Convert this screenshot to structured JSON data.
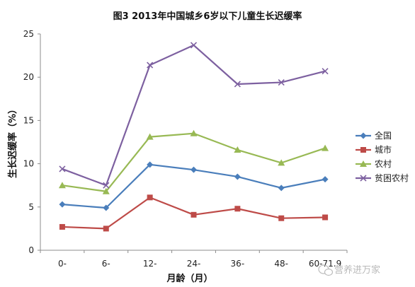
{
  "chart_data": {
    "type": "line",
    "title": "图3    2013年中国城乡6岁以下儿童生长迟缓率",
    "xlabel": "月龄（月）",
    "ylabel": "生长迟缓率（%）",
    "categories": [
      "0-",
      "6-",
      "12-",
      "24-",
      "36-",
      "48-",
      "60-71.9"
    ],
    "ylim": [
      0,
      25
    ],
    "yticks": [
      0,
      5,
      10,
      15,
      20,
      25
    ],
    "grid": false,
    "legend": "right",
    "series": [
      {
        "name": "全国",
        "color": "#4a7ebb",
        "marker": "diamond",
        "values": [
          5.3,
          4.9,
          9.9,
          9.3,
          8.5,
          7.2,
          8.2
        ]
      },
      {
        "name": "城市",
        "color": "#be4b48",
        "marker": "square",
        "values": [
          2.7,
          2.5,
          6.1,
          4.1,
          4.8,
          3.7,
          3.8
        ]
      },
      {
        "name": "农村",
        "color": "#98b954",
        "marker": "triangle",
        "values": [
          7.5,
          6.8,
          13.1,
          13.5,
          11.6,
          10.1,
          11.8
        ]
      },
      {
        "name": "贫困农村",
        "color": "#7d60a0",
        "marker": "x",
        "values": [
          9.4,
          7.5,
          21.4,
          23.7,
          19.2,
          19.4,
          20.7
        ]
      }
    ]
  },
  "watermark": {
    "icon": "wechat-icon",
    "text": "营养进万家"
  }
}
